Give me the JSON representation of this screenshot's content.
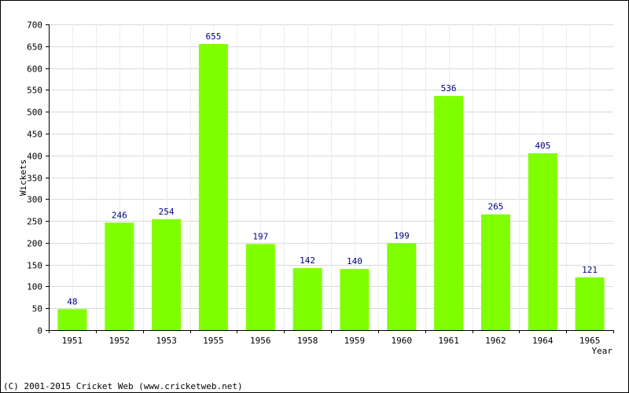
{
  "chart_data": {
    "type": "bar",
    "categories": [
      "1951",
      "1952",
      "1953",
      "1955",
      "1956",
      "1958",
      "1959",
      "1960",
      "1961",
      "1962",
      "1964",
      "1965"
    ],
    "values": [
      48,
      246,
      254,
      655,
      197,
      142,
      140,
      199,
      536,
      265,
      405,
      121
    ],
    "title": "",
    "xlabel": "Year",
    "ylabel": "Wickets",
    "ylim": [
      0,
      700
    ],
    "ytick_step": 50,
    "grid": true,
    "bar_color": "#80ff00",
    "label_color": "#000080"
  },
  "footer": {
    "copyright": "(C) 2001-2015 Cricket Web (www.cricketweb.net)"
  }
}
